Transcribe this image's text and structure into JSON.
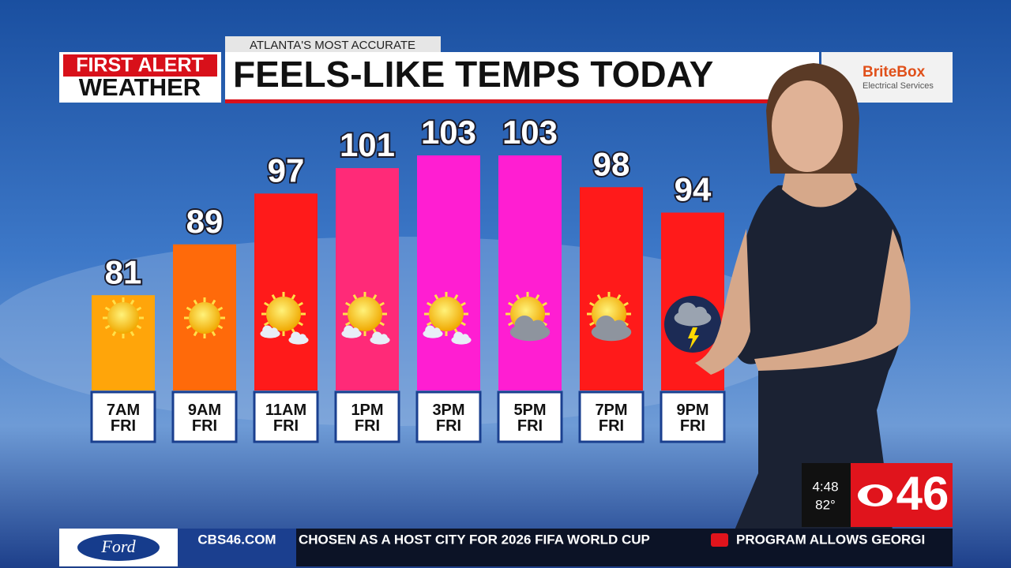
{
  "header": {
    "tag": "ATLANTA'S MOST ACCURATE",
    "brand_line1": "FIRST ALERT",
    "brand_line2": "WEATHER",
    "sponsor": "BriteBox",
    "sponsor_sub": "Electrical Services"
  },
  "chart_data": {
    "type": "bar",
    "title": "FEELS-LIKE TEMPS TODAY",
    "categories": [
      "7AM FRI",
      "9AM FRI",
      "11AM FRI",
      "1PM FRI",
      "3PM FRI",
      "5PM FRI",
      "7PM FRI",
      "9PM FRI"
    ],
    "values": [
      81,
      89,
      97,
      101,
      103,
      103,
      98,
      94
    ],
    "colors": [
      "#ffa50a",
      "#ff6a0a",
      "#ff1a1a",
      "#ff2a78",
      "#ff1ed2",
      "#ff1ed2",
      "#ff1a1a",
      "#ff1a1a"
    ],
    "ylim": [
      66,
      103
    ]
  },
  "bug": {
    "time": "4:48",
    "temp": "82°",
    "channel": "46"
  },
  "ticker": {
    "sponsor": "Ford",
    "site": "CBS46.COM",
    "items": [
      "CHOSEN AS A HOST CITY FOR 2026 FIFA WORLD CUP",
      "PROGRAM ALLOWS GEORGI"
    ]
  }
}
